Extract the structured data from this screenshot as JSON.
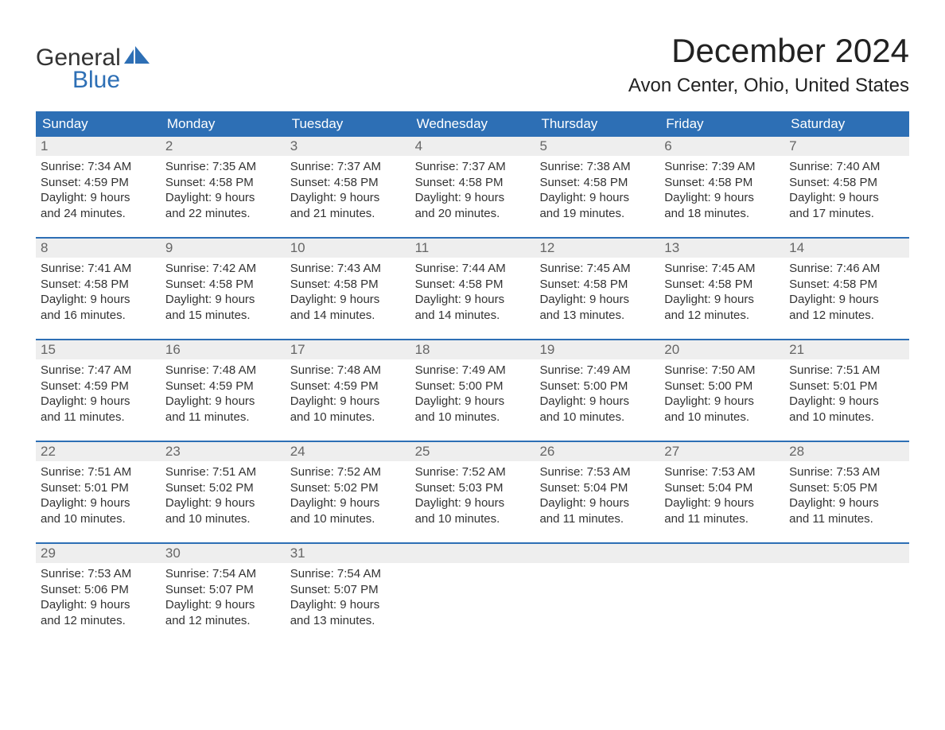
{
  "logo": {
    "line1": "General",
    "line2": "Blue",
    "shape_color": "#2d6fb5"
  },
  "title": "December 2024",
  "location": "Avon Center, Ohio, United States",
  "colors": {
    "header_bg": "#2d6fb5",
    "header_text": "#ffffff",
    "daynum_bg": "#eeeeee",
    "daynum_text": "#666666",
    "body_text": "#333333",
    "row_border": "#2d6fb5",
    "page_bg": "#ffffff"
  },
  "font": {
    "family": "Arial",
    "title_size_pt": 32,
    "location_size_pt": 18,
    "header_size_pt": 13,
    "body_size_pt": 11
  },
  "weekdays": [
    "Sunday",
    "Monday",
    "Tuesday",
    "Wednesday",
    "Thursday",
    "Friday",
    "Saturday"
  ],
  "weeks": [
    [
      {
        "day": "1",
        "sunrise": "Sunrise: 7:34 AM",
        "sunset": "Sunset: 4:59 PM",
        "dl1": "Daylight: 9 hours",
        "dl2": "and 24 minutes."
      },
      {
        "day": "2",
        "sunrise": "Sunrise: 7:35 AM",
        "sunset": "Sunset: 4:58 PM",
        "dl1": "Daylight: 9 hours",
        "dl2": "and 22 minutes."
      },
      {
        "day": "3",
        "sunrise": "Sunrise: 7:37 AM",
        "sunset": "Sunset: 4:58 PM",
        "dl1": "Daylight: 9 hours",
        "dl2": "and 21 minutes."
      },
      {
        "day": "4",
        "sunrise": "Sunrise: 7:37 AM",
        "sunset": "Sunset: 4:58 PM",
        "dl1": "Daylight: 9 hours",
        "dl2": "and 20 minutes."
      },
      {
        "day": "5",
        "sunrise": "Sunrise: 7:38 AM",
        "sunset": "Sunset: 4:58 PM",
        "dl1": "Daylight: 9 hours",
        "dl2": "and 19 minutes."
      },
      {
        "day": "6",
        "sunrise": "Sunrise: 7:39 AM",
        "sunset": "Sunset: 4:58 PM",
        "dl1": "Daylight: 9 hours",
        "dl2": "and 18 minutes."
      },
      {
        "day": "7",
        "sunrise": "Sunrise: 7:40 AM",
        "sunset": "Sunset: 4:58 PM",
        "dl1": "Daylight: 9 hours",
        "dl2": "and 17 minutes."
      }
    ],
    [
      {
        "day": "8",
        "sunrise": "Sunrise: 7:41 AM",
        "sunset": "Sunset: 4:58 PM",
        "dl1": "Daylight: 9 hours",
        "dl2": "and 16 minutes."
      },
      {
        "day": "9",
        "sunrise": "Sunrise: 7:42 AM",
        "sunset": "Sunset: 4:58 PM",
        "dl1": "Daylight: 9 hours",
        "dl2": "and 15 minutes."
      },
      {
        "day": "10",
        "sunrise": "Sunrise: 7:43 AM",
        "sunset": "Sunset: 4:58 PM",
        "dl1": "Daylight: 9 hours",
        "dl2": "and 14 minutes."
      },
      {
        "day": "11",
        "sunrise": "Sunrise: 7:44 AM",
        "sunset": "Sunset: 4:58 PM",
        "dl1": "Daylight: 9 hours",
        "dl2": "and 14 minutes."
      },
      {
        "day": "12",
        "sunrise": "Sunrise: 7:45 AM",
        "sunset": "Sunset: 4:58 PM",
        "dl1": "Daylight: 9 hours",
        "dl2": "and 13 minutes."
      },
      {
        "day": "13",
        "sunrise": "Sunrise: 7:45 AM",
        "sunset": "Sunset: 4:58 PM",
        "dl1": "Daylight: 9 hours",
        "dl2": "and 12 minutes."
      },
      {
        "day": "14",
        "sunrise": "Sunrise: 7:46 AM",
        "sunset": "Sunset: 4:58 PM",
        "dl1": "Daylight: 9 hours",
        "dl2": "and 12 minutes."
      }
    ],
    [
      {
        "day": "15",
        "sunrise": "Sunrise: 7:47 AM",
        "sunset": "Sunset: 4:59 PM",
        "dl1": "Daylight: 9 hours",
        "dl2": "and 11 minutes."
      },
      {
        "day": "16",
        "sunrise": "Sunrise: 7:48 AM",
        "sunset": "Sunset: 4:59 PM",
        "dl1": "Daylight: 9 hours",
        "dl2": "and 11 minutes."
      },
      {
        "day": "17",
        "sunrise": "Sunrise: 7:48 AM",
        "sunset": "Sunset: 4:59 PM",
        "dl1": "Daylight: 9 hours",
        "dl2": "and 10 minutes."
      },
      {
        "day": "18",
        "sunrise": "Sunrise: 7:49 AM",
        "sunset": "Sunset: 5:00 PM",
        "dl1": "Daylight: 9 hours",
        "dl2": "and 10 minutes."
      },
      {
        "day": "19",
        "sunrise": "Sunrise: 7:49 AM",
        "sunset": "Sunset: 5:00 PM",
        "dl1": "Daylight: 9 hours",
        "dl2": "and 10 minutes."
      },
      {
        "day": "20",
        "sunrise": "Sunrise: 7:50 AM",
        "sunset": "Sunset: 5:00 PM",
        "dl1": "Daylight: 9 hours",
        "dl2": "and 10 minutes."
      },
      {
        "day": "21",
        "sunrise": "Sunrise: 7:51 AM",
        "sunset": "Sunset: 5:01 PM",
        "dl1": "Daylight: 9 hours",
        "dl2": "and 10 minutes."
      }
    ],
    [
      {
        "day": "22",
        "sunrise": "Sunrise: 7:51 AM",
        "sunset": "Sunset: 5:01 PM",
        "dl1": "Daylight: 9 hours",
        "dl2": "and 10 minutes."
      },
      {
        "day": "23",
        "sunrise": "Sunrise: 7:51 AM",
        "sunset": "Sunset: 5:02 PM",
        "dl1": "Daylight: 9 hours",
        "dl2": "and 10 minutes."
      },
      {
        "day": "24",
        "sunrise": "Sunrise: 7:52 AM",
        "sunset": "Sunset: 5:02 PM",
        "dl1": "Daylight: 9 hours",
        "dl2": "and 10 minutes."
      },
      {
        "day": "25",
        "sunrise": "Sunrise: 7:52 AM",
        "sunset": "Sunset: 5:03 PM",
        "dl1": "Daylight: 9 hours",
        "dl2": "and 10 minutes."
      },
      {
        "day": "26",
        "sunrise": "Sunrise: 7:53 AM",
        "sunset": "Sunset: 5:04 PM",
        "dl1": "Daylight: 9 hours",
        "dl2": "and 11 minutes."
      },
      {
        "day": "27",
        "sunrise": "Sunrise: 7:53 AM",
        "sunset": "Sunset: 5:04 PM",
        "dl1": "Daylight: 9 hours",
        "dl2": "and 11 minutes."
      },
      {
        "day": "28",
        "sunrise": "Sunrise: 7:53 AM",
        "sunset": "Sunset: 5:05 PM",
        "dl1": "Daylight: 9 hours",
        "dl2": "and 11 minutes."
      }
    ],
    [
      {
        "day": "29",
        "sunrise": "Sunrise: 7:53 AM",
        "sunset": "Sunset: 5:06 PM",
        "dl1": "Daylight: 9 hours",
        "dl2": "and 12 minutes."
      },
      {
        "day": "30",
        "sunrise": "Sunrise: 7:54 AM",
        "sunset": "Sunset: 5:07 PM",
        "dl1": "Daylight: 9 hours",
        "dl2": "and 12 minutes."
      },
      {
        "day": "31",
        "sunrise": "Sunrise: 7:54 AM",
        "sunset": "Sunset: 5:07 PM",
        "dl1": "Daylight: 9 hours",
        "dl2": "and 13 minutes."
      },
      {
        "day": "",
        "sunrise": "",
        "sunset": "",
        "dl1": "",
        "dl2": ""
      },
      {
        "day": "",
        "sunrise": "",
        "sunset": "",
        "dl1": "",
        "dl2": ""
      },
      {
        "day": "",
        "sunrise": "",
        "sunset": "",
        "dl1": "",
        "dl2": ""
      },
      {
        "day": "",
        "sunrise": "",
        "sunset": "",
        "dl1": "",
        "dl2": ""
      }
    ]
  ]
}
